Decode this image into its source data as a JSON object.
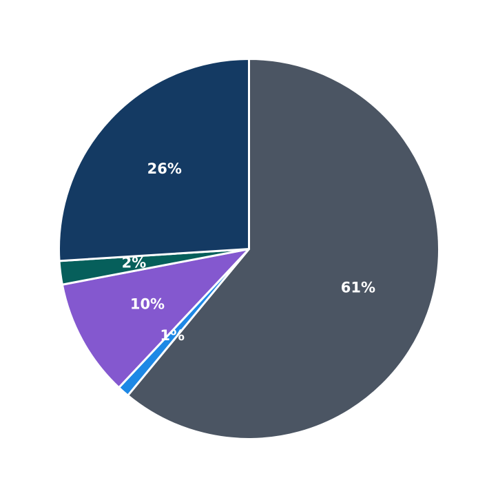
{
  "chart_data": {
    "type": "pie",
    "title": "",
    "start": "12 o'clock",
    "direction": "clockwise",
    "slices": [
      {
        "label_text": "61%",
        "value": 61,
        "color": "#4b5563"
      },
      {
        "label_text": "1%",
        "value": 1,
        "color": "#1e88e5"
      },
      {
        "label_text": "10%",
        "value": 10,
        "color": "#8458cf"
      },
      {
        "label_text": "2%",
        "value": 2,
        "color": "#065f5b"
      },
      {
        "label_text": "26%",
        "value": 26,
        "color": "#143a63"
      }
    ]
  }
}
